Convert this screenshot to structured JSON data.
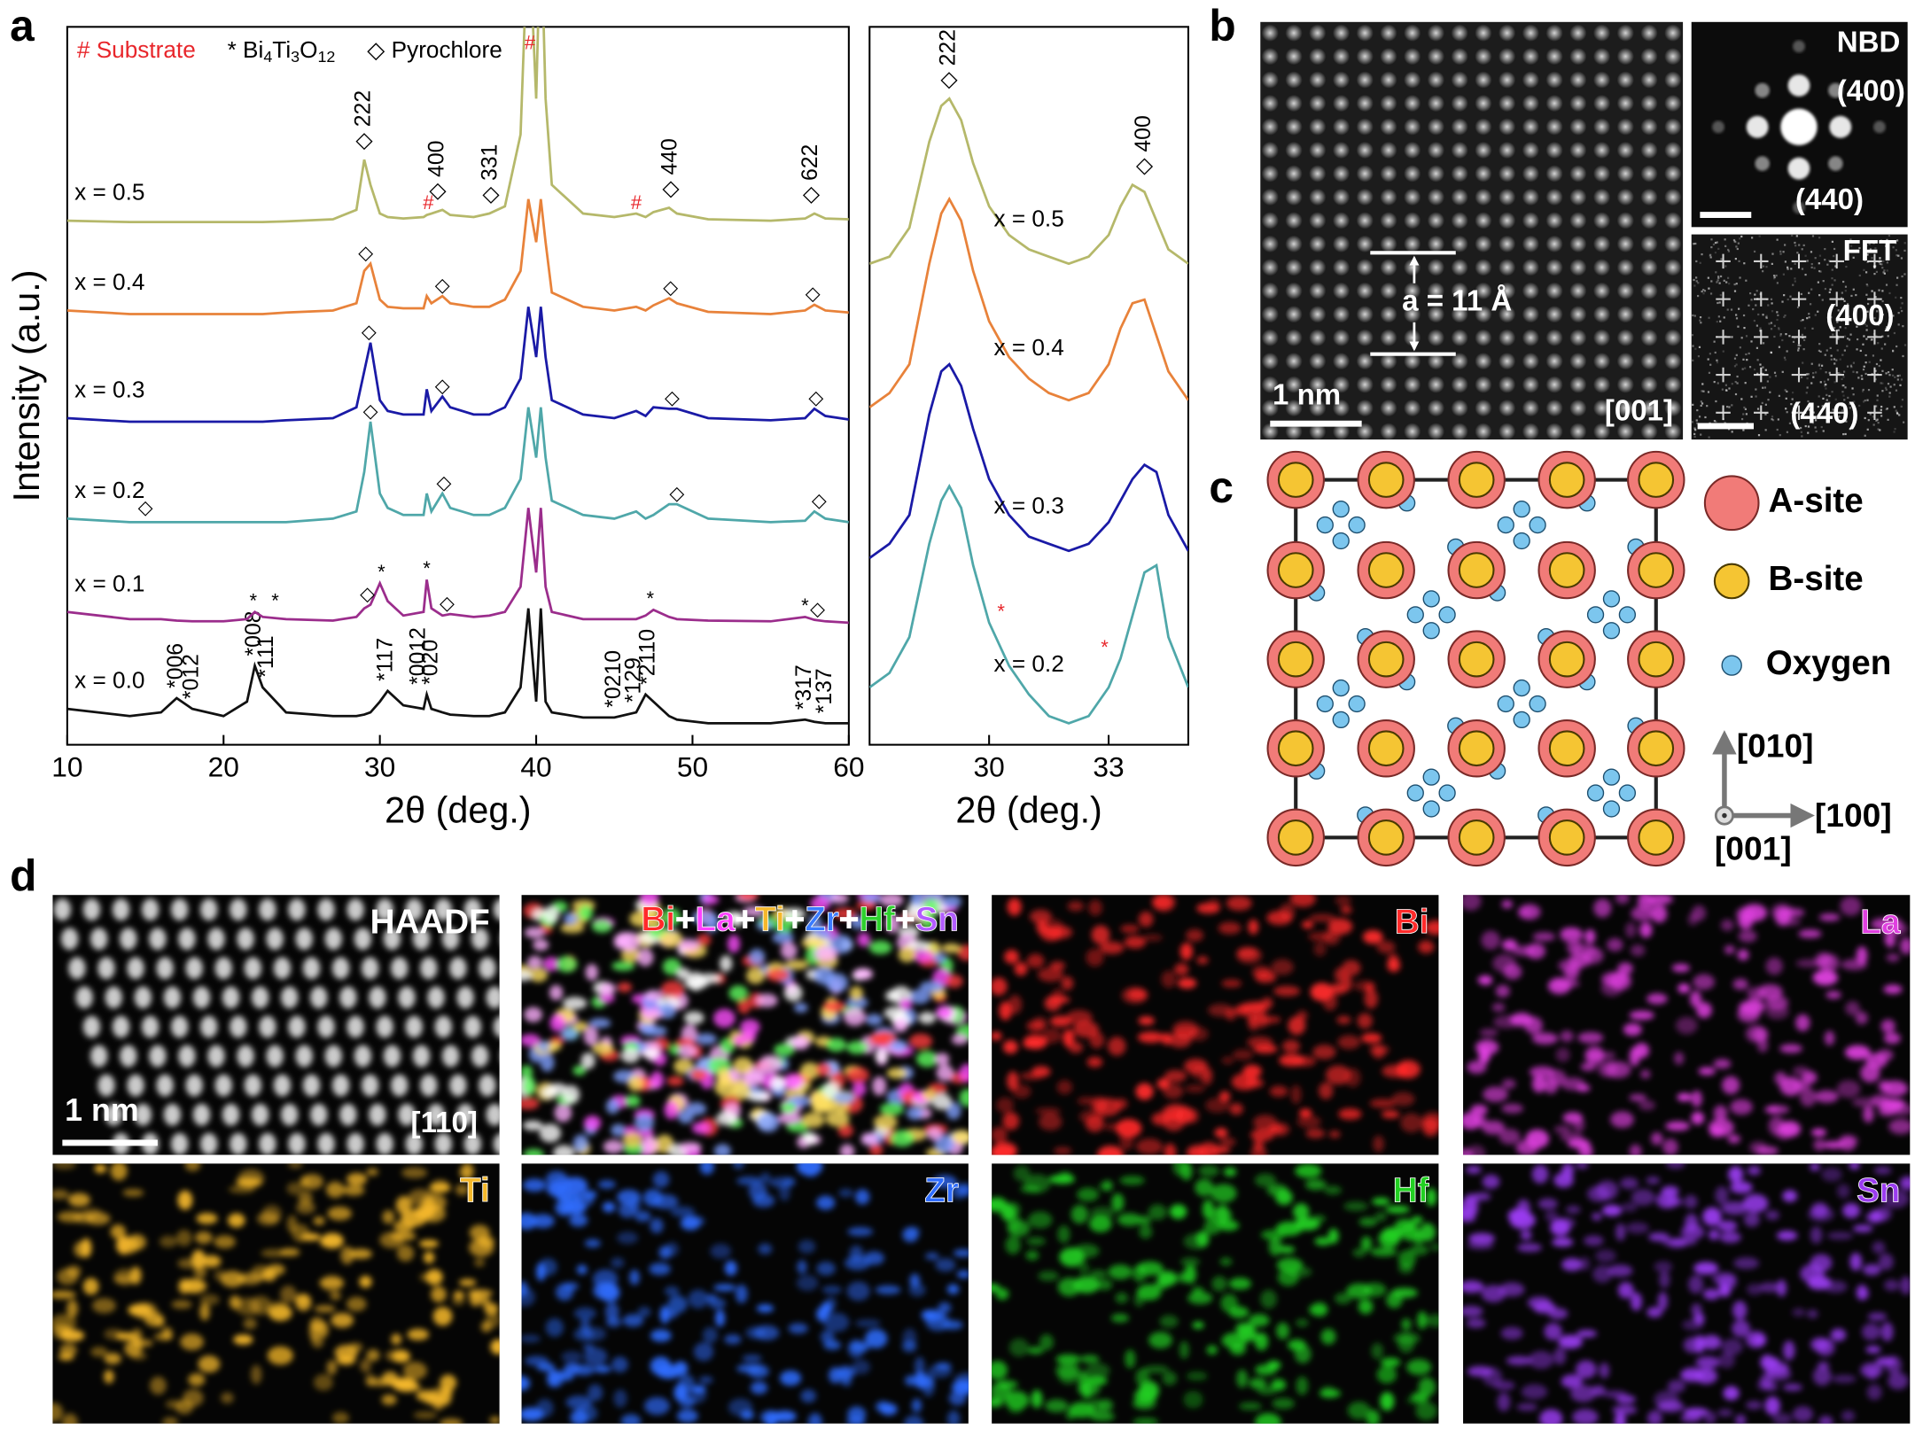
{
  "chart_data": [
    {
      "type": "line",
      "xlabel": "2θ (deg.)",
      "ylabel": "Intensity (a.u.)",
      "xlim": [
        10,
        60
      ],
      "xticks": [
        10,
        20,
        30,
        40,
        50,
        60
      ],
      "ylim": [
        0,
        100
      ],
      "legend": [
        {
          "text": "# Substrate",
          "color": "#e8262b"
        },
        {
          "marker": "*",
          "parts": [
            "Bi",
            "4",
            "Ti",
            "3",
            "O",
            "12"
          ]
        },
        {
          "marker": "◇",
          "text": "Pyrochlore"
        }
      ],
      "x": [
        10,
        14,
        16,
        17,
        18,
        20,
        21.5,
        22,
        22.5,
        24,
        27,
        28.5,
        29,
        29.4,
        30,
        30.5,
        31.5,
        32.8,
        33,
        33.3,
        34,
        34.5,
        36,
        37,
        38,
        39,
        39.5,
        40,
        40.3,
        40.6,
        41,
        43,
        45,
        46.4,
        47,
        47.5,
        48.5,
        49,
        51,
        55,
        57.2,
        57.8,
        58.5,
        60
      ],
      "series": [
        {
          "name": "x = 0.0",
          "color": "#111111",
          "values": [
            5,
            4,
            4.5,
            6.5,
            5,
            4,
            6,
            11,
            8,
            4.5,
            4,
            4,
            4.2,
            4.5,
            6,
            7.5,
            5.5,
            5,
            7,
            5,
            4.5,
            4.2,
            4,
            4,
            4.5,
            8,
            19,
            6,
            19,
            6,
            4.5,
            3.8,
            3.8,
            4.5,
            7,
            6,
            4,
            3.5,
            3,
            3,
            3.5,
            3.2,
            3,
            3
          ],
          "annotations": [
            {
              "text": "*006",
              "x": 17
            },
            {
              "text": "*012",
              "x": 18
            },
            {
              "text": "*008",
              "x": 22
            },
            {
              "text": "*111",
              "x": 22.8
            },
            {
              "text": "*117",
              "x": 30.4
            },
            {
              "text": "*0012",
              "x": 32.5
            },
            {
              "text": "*020",
              "x": 33.3
            },
            {
              "text": "*0210",
              "x": 45
            },
            {
              "text": "*129",
              "x": 46.3
            },
            {
              "text": "*2110",
              "x": 47.2
            },
            {
              "text": "*317",
              "x": 57.2
            },
            {
              "text": "*137",
              "x": 58.5
            }
          ]
        },
        {
          "name": "x = 0.1",
          "color": "#9b2d8c",
          "values": [
            18.5,
            17.5,
            17.5,
            17.3,
            17.2,
            17.2,
            17.5,
            18.5,
            17.8,
            17.5,
            17.3,
            17.8,
            19,
            19.5,
            22.5,
            20,
            18,
            18.5,
            23,
            19,
            18,
            18.2,
            17.8,
            18,
            18.5,
            22,
            33,
            24,
            33,
            22,
            18.5,
            17.5,
            17.5,
            17.5,
            18,
            18.8,
            17.8,
            17.5,
            17.3,
            17.2,
            17.8,
            17.4,
            17.2,
            17
          ],
          "annotations": [
            {
              "text": "*",
              "x": 21.9
            },
            {
              "text": "*",
              "x": 23.3
            },
            {
              "text": "◇",
              "x": 29.2
            },
            {
              "text": "*",
              "x": 30.1
            },
            {
              "text": "*",
              "x": 33
            },
            {
              "text": "◇",
              "x": 34.3
            },
            {
              "text": "*",
              "x": 47.3
            },
            {
              "text": "*",
              "x": 57.2
            },
            {
              "text": "◇",
              "x": 58
            }
          ]
        },
        {
          "name": "x = 0.2",
          "color": "#4fa7a9",
          "values": [
            31.5,
            31,
            31,
            31,
            31,
            31,
            31,
            31,
            31,
            31,
            31.5,
            32.5,
            38,
            45,
            35,
            33,
            32,
            32,
            35,
            32.5,
            35,
            33,
            32,
            32,
            33,
            37,
            47,
            40,
            47,
            40,
            34,
            32,
            31.5,
            32.5,
            31.5,
            32,
            33.5,
            33.5,
            31.5,
            31,
            31.2,
            32.5,
            31.5,
            31
          ],
          "annotations": [
            {
              "text": "◇",
              "x": 15
            },
            {
              "text": "◇",
              "x": 29.4
            },
            {
              "text": "◇",
              "x": 34.1
            },
            {
              "text": "◇",
              "x": 49
            },
            {
              "text": "◇",
              "x": 58.1
            }
          ]
        },
        {
          "name": "x = 0.3",
          "color": "#1a1aa6",
          "values": [
            45.5,
            45,
            45,
            45,
            45,
            45,
            45,
            45,
            45,
            45.2,
            45.5,
            47,
            52,
            56,
            48,
            46.5,
            46,
            46,
            49.5,
            46.5,
            48.5,
            47,
            46,
            46,
            47,
            51,
            61,
            54,
            61,
            54,
            48,
            46,
            45.5,
            46.5,
            45.8,
            47,
            46.8,
            46.8,
            45.5,
            45.2,
            45.5,
            46.8,
            45.8,
            45.3
          ],
          "annotations": [
            {
              "text": "◇",
              "x": 29.3
            },
            {
              "text": "◇",
              "x": 34
            },
            {
              "text": "◇",
              "x": 48.7
            },
            {
              "text": "◇",
              "x": 57.9
            }
          ]
        },
        {
          "name": "x = 0.4",
          "color": "#e8823a",
          "values": [
            60.5,
            60,
            60,
            60,
            60,
            60,
            60,
            60,
            60,
            60.2,
            60.5,
            61.5,
            66,
            67,
            62,
            61,
            60.8,
            60.8,
            62.5,
            61.5,
            62.5,
            61.5,
            61,
            61,
            62,
            66,
            76,
            70,
            76,
            70,
            63,
            61,
            60.5,
            61,
            60.5,
            61.2,
            62.2,
            61.5,
            60.3,
            60,
            60.5,
            61.3,
            60.5,
            60.2
          ],
          "annotations": [
            {
              "text": "◇",
              "x": 29.1
            },
            {
              "text": "◇",
              "x": 34
            },
            {
              "text": "◇",
              "x": 48.6
            },
            {
              "text": "◇",
              "x": 57.7
            }
          ]
        },
        {
          "name": "x = 0.5",
          "color": "#b5b86a",
          "values": [
            73,
            72.8,
            72.8,
            72.8,
            72.8,
            72.8,
            72.8,
            72.8,
            72.8,
            72.9,
            73.2,
            74.5,
            81.5,
            78,
            74,
            73.5,
            73.3,
            73.5,
            73.8,
            74,
            74.5,
            73.8,
            73.5,
            74,
            75,
            85,
            115,
            90,
            115,
            90,
            78,
            74,
            73.5,
            74,
            73.5,
            74.2,
            74.8,
            74,
            73.2,
            73,
            73.3,
            74,
            73.3,
            73.2
          ],
          "annotations": [
            {
              "text": "◇ 222",
              "x": 29
            },
            {
              "text": "#",
              "x": 33.1,
              "color": "#e8262b"
            },
            {
              "text": "◇ 400",
              "x": 33.7
            },
            {
              "text": "◇ 331",
              "x": 37.1
            },
            {
              "text": "#",
              "x": 39.6,
              "color": "#e8262b"
            },
            {
              "text": "#",
              "x": 46.4,
              "color": "#e8262b"
            },
            {
              "text": "◇ 440",
              "x": 48.6
            },
            {
              "text": "◇ 622",
              "x": 57.6
            }
          ]
        }
      ]
    },
    {
      "type": "line",
      "xlabel": "2θ (deg.)",
      "xlim": [
        27,
        35
      ],
      "xticks": [
        30,
        33
      ],
      "ylim": [
        0,
        100
      ],
      "x": [
        27,
        27.5,
        28,
        28.5,
        28.8,
        29,
        29.3,
        29.6,
        30,
        30.5,
        31,
        31.5,
        32,
        32.5,
        33,
        33.3,
        33.6,
        33.9,
        34.2,
        34.5,
        35
      ],
      "series": [
        {
          "name": "x = 0.5",
          "color": "#b5b86a",
          "values": [
            67,
            68,
            72,
            84,
            89,
            90,
            87,
            81,
            75,
            71,
            69,
            68,
            67,
            68,
            71,
            75,
            78,
            77,
            73,
            69,
            67
          ],
          "annotations": [
            {
              "text": "◇ 222",
              "x": 29
            },
            {
              "text": "◇ 400",
              "x": 33.9
            }
          ]
        },
        {
          "name": "x = 0.4",
          "color": "#e8823a",
          "values": [
            47,
            49,
            53,
            67,
            74,
            76,
            73,
            66,
            59,
            54,
            51,
            49,
            48,
            49,
            53,
            58,
            61.5,
            62,
            57,
            52,
            48
          ]
        },
        {
          "name": "x = 0.3",
          "color": "#1a1aa6",
          "values": [
            26,
            28,
            32,
            46,
            52,
            53,
            50,
            44,
            37,
            32,
            29,
            28,
            27,
            28,
            31,
            34,
            37,
            39,
            38,
            32,
            27
          ]
        },
        {
          "name": "x = 0.2",
          "color": "#4fa7a9",
          "values": [
            8,
            10,
            15,
            28,
            34,
            36,
            33,
            25,
            17,
            11,
            7,
            4,
            3,
            4,
            8,
            12,
            18,
            24,
            25,
            15,
            8
          ],
          "annotations": [
            {
              "text": "*",
              "x": 30.3,
              "color": "#e8262b"
            },
            {
              "text": "*",
              "x": 32.9,
              "color": "#e8262b"
            }
          ]
        }
      ]
    }
  ],
  "figure": {
    "panel_a": {
      "label": "a"
    },
    "panel_b": {
      "label": "b",
      "lattice": "a = 11 Å",
      "scale_bar": "1 nm",
      "zone_axis": "[001]",
      "nbd": {
        "title": "NBD",
        "spots": [
          "(400)",
          "(440)"
        ]
      },
      "fft": {
        "title": "FFT",
        "spots": [
          "(400)",
          "(440)"
        ]
      }
    },
    "panel_c": {
      "label": "c",
      "legend": [
        "A-site",
        "B-site",
        "Oxygen"
      ],
      "axes": [
        "[010]",
        "[100]",
        "[001]"
      ]
    },
    "panel_d": {
      "label": "d",
      "scale_bar": "1 nm",
      "zone_axis": "[110]",
      "composite": [
        {
          "text": "Bi",
          "color": "#ff2a2a"
        },
        {
          "text": "+",
          "color": "#ffffff"
        },
        {
          "text": "La",
          "color": "#ff40ff"
        },
        {
          "text": "+",
          "color": "#ffffff"
        },
        {
          "text": "Ti",
          "color": "#f5b82a"
        },
        {
          "text": "+",
          "color": "#ffffff"
        },
        {
          "text": "Zr",
          "color": "#3a7bff"
        },
        {
          "text": "+",
          "color": "#ffffff"
        },
        {
          "text": "Hf",
          "color": "#2ed12e"
        },
        {
          "text": "+",
          "color": "#ffffff"
        },
        {
          "text": "Sn",
          "color": "#b25cff"
        }
      ],
      "maps": [
        {
          "title": "HAADF",
          "color": "#e0e0e0"
        },
        {
          "title": "Bi",
          "color": "#ff2a2a"
        },
        {
          "title": "La",
          "color": "#e040e0"
        },
        {
          "title": "Ti",
          "color": "#f5b82a"
        },
        {
          "title": "Zr",
          "color": "#2f6dff"
        },
        {
          "title": "Hf",
          "color": "#22d022"
        },
        {
          "title": "Sn",
          "color": "#9a3cf0"
        }
      ]
    }
  }
}
